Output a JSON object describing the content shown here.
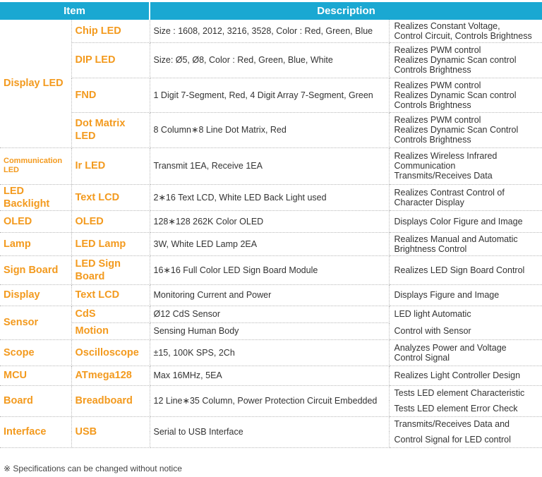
{
  "header": {
    "item": "Item",
    "description": "Description"
  },
  "rows": {
    "display_led": "Display LED",
    "chip_led": {
      "sub": "Chip LED",
      "spec": "Size : 1608, 2012, 3216, 3528, Color : Red, Green, Blue",
      "desc": "Realizes Constant Voltage,\nControl Circuit, Controls Brightness"
    },
    "dip_led": {
      "sub": "DIP LED",
      "spec": "Size: Ø5, Ø8, Color : Red, Green, Blue, White",
      "desc": "Realizes PWM control\nRealizes Dynamic Scan control\nControls Brightness"
    },
    "fnd": {
      "sub": "FND",
      "spec": "1 Digit 7-Segment, Red, 4 Digit Array 7-Segment, Green",
      "desc": "Realizes PWM control\nRealizes Dynamic Scan control\nControls Brightness"
    },
    "dot_matrix": {
      "sub": "Dot Matrix LED",
      "spec": "8 Column∗8 Line Dot Matrix, Red",
      "desc": "Realizes PWM control\nRealizes Dynamic Scan Control\nControls Brightness"
    },
    "communication": {
      "cat": "Communication\nLED",
      "sub": "Ir LED",
      "spec": "Transmit 1EA, Receive 1EA",
      "desc": "Realizes Wireless Infrared\nCommunication\nTransmits/Receives Data"
    },
    "backlight": {
      "cat": "LED Backlight",
      "sub": "Text LCD",
      "spec": "2∗16 Text LCD, White LED Back Light used",
      "desc": "Realizes Contrast Control of\nCharacter Display"
    },
    "oled": {
      "cat": "OLED",
      "sub": "OLED",
      "spec": "128∗128 262K Color OLED",
      "desc": "Displays Color Figure and Image"
    },
    "lamp": {
      "cat": "Lamp",
      "sub": "LED Lamp",
      "spec": "3W, White LED Lamp 2EA",
      "desc": "Realizes Manual and Automatic\nBrightness Control"
    },
    "sign_board": {
      "cat": "Sign Board",
      "sub": "LED Sign\nBoard",
      "spec": "16∗16 Full Color LED Sign Board Module",
      "desc": "Realizes LED Sign Board Control"
    },
    "display": {
      "cat": "Display",
      "sub": "Text LCD",
      "spec": "Monitoring Current and Power",
      "desc": "Displays Figure and Image"
    },
    "sensor": {
      "cat": "Sensor",
      "cds_sub": "CdS",
      "cds_spec": "Ø12 CdS Sensor",
      "cds_desc": "LED light Automatic",
      "motion_sub": "Motion",
      "motion_spec": "Sensing Human Body",
      "motion_desc": "Control with Sensor"
    },
    "scope": {
      "cat": "Scope",
      "sub": "Oscilloscope",
      "spec": "±15, 100K SPS, 2Ch",
      "desc": "Analyzes Power and Voltage\nControl Signal"
    },
    "mcu": {
      "cat": "MCU",
      "sub": "ATmega128",
      "spec": "Max 16MHz, 5EA",
      "desc": "Realizes Light Controller Design"
    },
    "board": {
      "cat": "Board",
      "sub": "Breadboard",
      "spec": "12 Line∗35 Column, Power Protection Circuit Embedded",
      "desc1": "Tests LED element Characteristic",
      "desc2": "Tests LED element Error Check"
    },
    "interface": {
      "cat": "Interface",
      "sub": "USB",
      "spec": "Serial to USB Interface",
      "desc1": "Transmits/Receives Data and",
      "desc2": "Control Signal for LED control"
    }
  },
  "footnote": "※ Specifications can be changed without notice"
}
